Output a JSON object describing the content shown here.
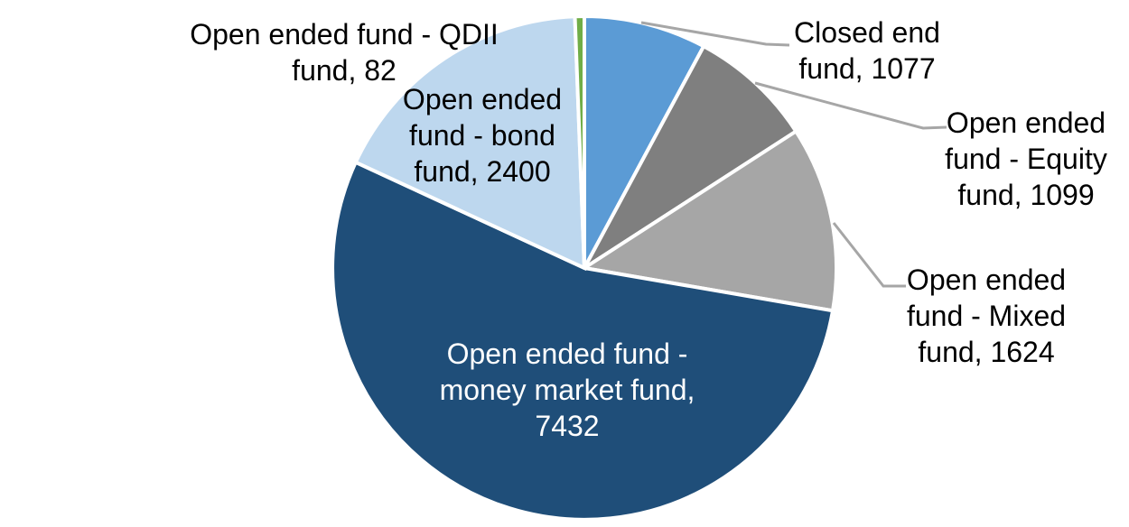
{
  "chart_data": {
    "type": "pie",
    "title": "",
    "categories": [
      "Closed end fund",
      "Open ended fund - Equity fund",
      "Open ended fund - Mixed fund",
      "Open ended fund - money market fund",
      "Open ended fund - bond fund",
      "Open ended fund - QDII fund"
    ],
    "values": [
      1077,
      1099,
      1624,
      7432,
      2400,
      82
    ],
    "start_angle_deg": 0,
    "direction": "clockwise",
    "background": "#FFFFFF",
    "slice_border_color": "#FFFFFF",
    "leader_line_color": "#A6A6A6",
    "segments": [
      {
        "name": "Closed end fund",
        "value": 1077,
        "color": "#5B9BD5",
        "label_lines": [
          "Closed end",
          "fund, 1077"
        ],
        "label_position": "outside",
        "has_leader_line": true
      },
      {
        "name": "Open ended fund - Equity fund",
        "value": 1099,
        "color": "#7F7F7F",
        "label_lines": [
          "Open ended",
          "fund - Equity",
          "fund, 1099"
        ],
        "label_position": "outside",
        "has_leader_line": true
      },
      {
        "name": "Open ended fund - Mixed fund",
        "value": 1624,
        "color": "#A6A6A6",
        "label_lines": [
          "Open ended",
          "fund - Mixed",
          "fund, 1624"
        ],
        "label_position": "outside",
        "has_leader_line": true
      },
      {
        "name": "Open ended fund - money market fund",
        "value": 7432,
        "color": "#1F4E79",
        "label_lines": [
          "Open ended fund -",
          "money market fund,",
          "7432"
        ],
        "label_position": "inside",
        "label_color": "#FFFFFF",
        "has_leader_line": false
      },
      {
        "name": "Open ended fund - bond fund",
        "value": 2400,
        "color": "#BDD7EE",
        "label_lines": [
          "Open ended",
          "fund - bond",
          "fund, 2400"
        ],
        "label_position": "inside-edge",
        "has_leader_line": false
      },
      {
        "name": "Open ended fund - QDII fund",
        "value": 82,
        "color": "#70AD47",
        "label_lines": [
          "Open ended fund - QDII",
          "fund, 82"
        ],
        "label_position": "outside",
        "has_leader_line": false
      }
    ]
  }
}
